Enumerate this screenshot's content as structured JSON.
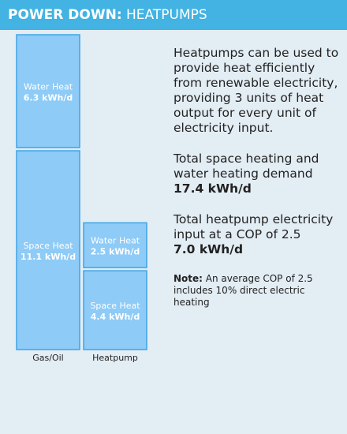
{
  "header": {
    "title_bold": "POWER DOWN:",
    "title_rest": " HEATPUMPS"
  },
  "chart_data": {
    "type": "bar",
    "stacked": true,
    "categories": [
      "Gas/Oil",
      "Heatpump"
    ],
    "series": [
      {
        "name": "Space Heat",
        "values": [
          11.1,
          4.4
        ],
        "labels": [
          "11.1 kWh/d",
          "4.4 kWh/d"
        ]
      },
      {
        "name": "Water Heat",
        "values": [
          6.3,
          2.5
        ],
        "labels": [
          "6.3 kWh/d",
          "2.5 kWh/d"
        ]
      }
    ],
    "colors": {
      "fill": "#8ecbf7",
      "stroke": "#3da4e8",
      "text": "#ffffff"
    }
  },
  "text": {
    "intro": "Heatpumps can be used to provide heat efficiently from renewable electricity, providing 3 units of heat output for every unit of electricity input.",
    "demand_label": "Total space heating and water heating demand",
    "demand_value": "17.4 kWh/d",
    "input_label": "Total heatpump electricity input at a COP of 2.5",
    "input_value": "7.0 kWh/d",
    "note_label": "Note:",
    "note_text": " An average COP of 2.5 includes 10% direct electric heating"
  }
}
